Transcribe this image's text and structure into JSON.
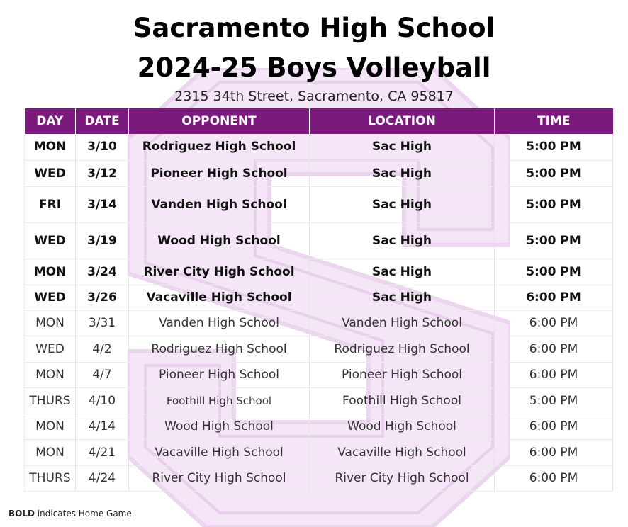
{
  "school_name": "Sacramento High School",
  "season_title": "2024-25 Boys Volleyball",
  "address": "2315 34th Street, Sacramento, CA 95817",
  "colors": {
    "header_bg": "#7a1a7d",
    "watermark": "#f3e4f5"
  },
  "columns": [
    "DAY",
    "DATE",
    "OPPONENT",
    "LOCATION",
    "TIME"
  ],
  "games": [
    {
      "day": "MON",
      "date": "3/10",
      "opponent": "Rodriguez High School",
      "location": "Sac High",
      "time": "5:00 PM",
      "home": true
    },
    {
      "day": "WED",
      "date": "3/12",
      "opponent": "Pioneer High School",
      "location": "Sac High",
      "time": "5:00 PM",
      "home": true
    },
    {
      "day": "FRI",
      "date": "3/14",
      "opponent": "Vanden High School",
      "location": "Sac High",
      "time": "5:00 PM",
      "home": true
    },
    {
      "day": "WED",
      "date": "3/19",
      "opponent": "Wood High School",
      "location": "Sac High",
      "time": "5:00 PM",
      "home": true
    },
    {
      "day": "MON",
      "date": "3/24",
      "opponent": "River City High School",
      "location": "Sac High",
      "time": "5:00 PM",
      "home": true
    },
    {
      "day": "WED",
      "date": "3/26",
      "opponent": "Vacaville High School",
      "location": "Sac High",
      "time": "6:00 PM",
      "home": true
    },
    {
      "day": "MON",
      "date": "3/31",
      "opponent": "Vanden High School",
      "location": "Vanden High School",
      "time": "6:00 PM",
      "home": false
    },
    {
      "day": "WED",
      "date": "4/2",
      "opponent": "Rodriguez High School",
      "location": "Rodriguez High School",
      "time": "6:00 PM",
      "home": false
    },
    {
      "day": "MON",
      "date": "4/7",
      "opponent": "Pioneer High School",
      "location": "Pioneer High School",
      "time": "6:00 PM",
      "home": false
    },
    {
      "day": "THURS",
      "date": "4/10",
      "opponent": "Foothill High School",
      "location": "Foothill High School",
      "time": "5:00 PM",
      "home": false
    },
    {
      "day": "MON",
      "date": "4/14",
      "opponent": "Wood High School",
      "location": "Wood High School",
      "time": "6:00 PM",
      "home": false
    },
    {
      "day": "MON",
      "date": "4/21",
      "opponent": "Vacaville High School",
      "location": "Vacaville High School",
      "time": "6:00 PM",
      "home": false
    },
    {
      "day": "THURS",
      "date": "4/24",
      "opponent": "River City High School",
      "location": "River City High School",
      "time": "6:00 PM",
      "home": false
    }
  ],
  "footnote": {
    "bold_word": "BOLD",
    "text": " indicates Home Game"
  }
}
